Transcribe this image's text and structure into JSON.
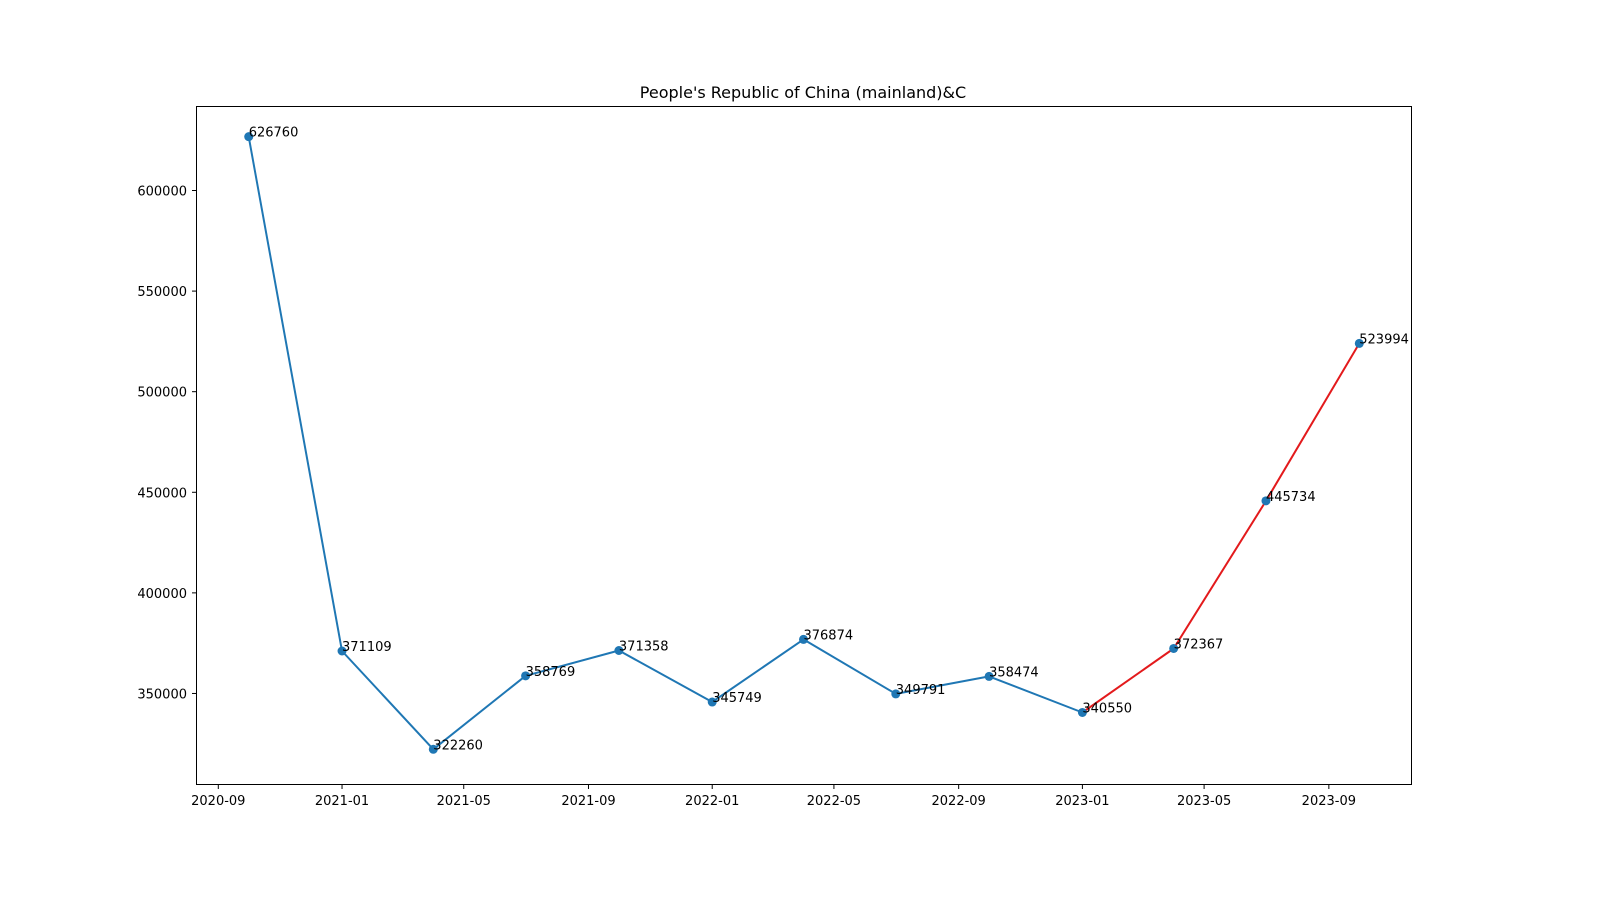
{
  "chart_data": {
    "type": "line",
    "title": "People's Republic of China (mainland)&C",
    "xlabel": "",
    "ylabel": "",
    "x_ticks": [
      "2020-09",
      "2021-01",
      "2021-05",
      "2021-09",
      "2022-01",
      "2022-05",
      "2022-09",
      "2023-01",
      "2023-05",
      "2023-09"
    ],
    "y_ticks": [
      350000,
      400000,
      450000,
      500000,
      550000,
      600000
    ],
    "ylim": [
      305000,
      642000
    ],
    "xlim": [
      "2020-08-11",
      "2023-11-21"
    ],
    "grid": false,
    "series": [
      {
        "color": "#1f77b4",
        "x": [
          "2020-10-01",
          "2021-01-01",
          "2021-04-01",
          "2021-07-01",
          "2021-10-01",
          "2022-01-01",
          "2022-04-01",
          "2022-07-01",
          "2022-10-01",
          "2023-01-01"
        ],
        "values": [
          626760,
          371109,
          322260,
          358769,
          371358,
          345749,
          376874,
          349791,
          358474,
          340550
        ]
      },
      {
        "color": "#e31a1c",
        "x": [
          "2023-01-01",
          "2023-04-01",
          "2023-07-01",
          "2023-10-01"
        ],
        "values": [
          340550,
          372367,
          445734,
          523994
        ]
      }
    ],
    "marker_color": "#1f77b4"
  }
}
